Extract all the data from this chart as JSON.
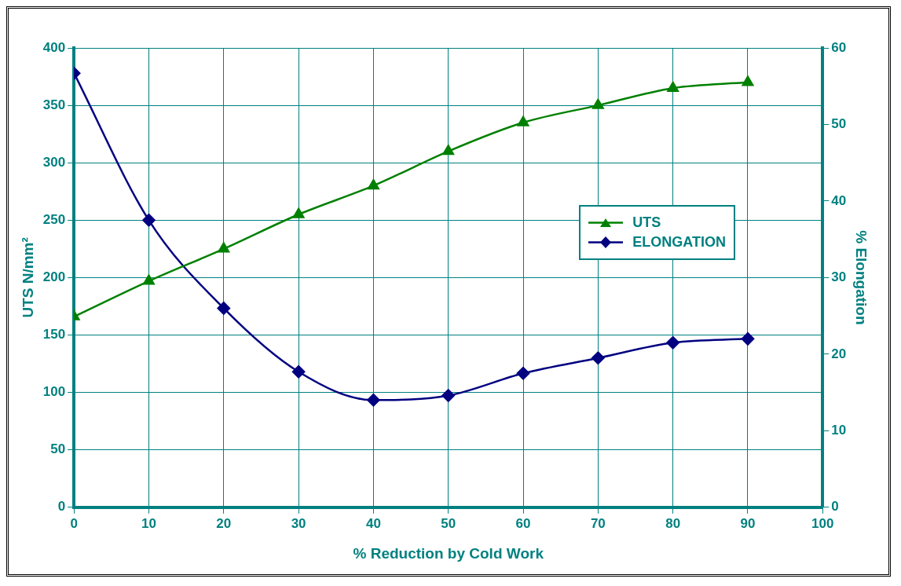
{
  "chart_data": {
    "type": "line",
    "xlabel": "% Reduction by Cold Work",
    "ylabel": "UTS N/mm²",
    "y2label": "% Elongation",
    "x": [
      0,
      10,
      20,
      30,
      40,
      50,
      60,
      70,
      80,
      90
    ],
    "xlim": [
      0,
      100
    ],
    "xticks": [
      0,
      10,
      20,
      30,
      40,
      50,
      60,
      70,
      80,
      90,
      100
    ],
    "ylim": [
      0,
      400
    ],
    "yticks": [
      0,
      50,
      100,
      150,
      200,
      250,
      300,
      350,
      400
    ],
    "y2lim": [
      0,
      60
    ],
    "y2ticks": [
      0,
      10,
      20,
      30,
      40,
      50,
      60
    ],
    "series": [
      {
        "name": "UTS",
        "color": "#008000",
        "marker": "triangle",
        "values": [
          166,
          197,
          225,
          255,
          280,
          310,
          335,
          350,
          365,
          370
        ]
      },
      {
        "name": "ELONGATION",
        "color": "#000080",
        "marker": "diamond",
        "axis": "y2",
        "values": [
          56.7,
          37.5,
          26,
          17.7,
          14,
          14.6,
          17.5,
          19.5,
          21.5,
          22
        ]
      }
    ],
    "grid": true,
    "legend": "right",
    "line_style": "solid"
  }
}
